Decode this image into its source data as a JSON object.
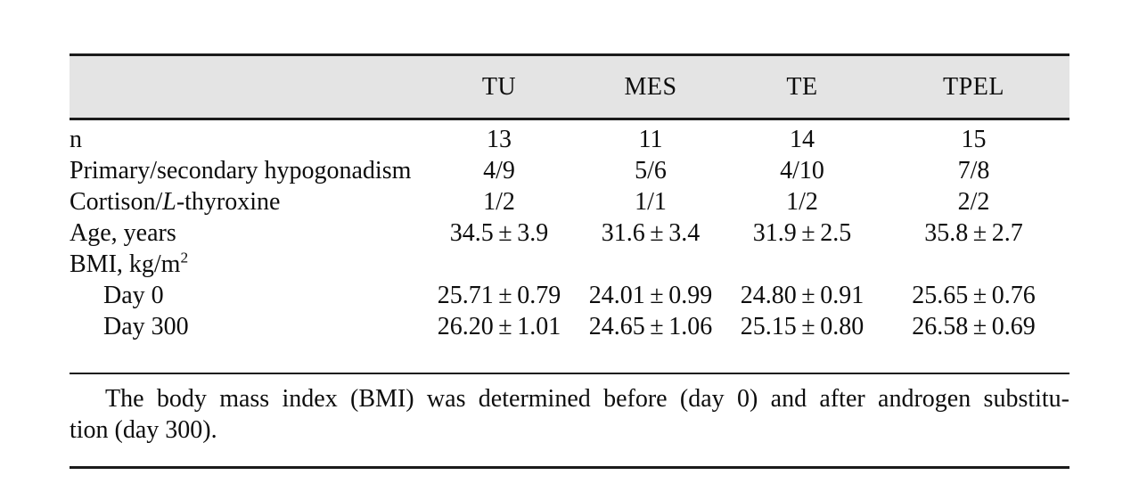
{
  "colors": {
    "header_bg": "#e4e4e4",
    "rule": "#1b1b1b",
    "ink": "#0d0d0d",
    "page_bg": "#ffffff"
  },
  "table": {
    "columns": [
      "TU",
      "MES",
      "TE",
      "TPEL"
    ],
    "rows": [
      {
        "label": "n",
        "values": [
          "13",
          "11",
          "14",
          "15"
        ]
      },
      {
        "label": "Primary/secondary hypogonadism",
        "values": [
          "4/9",
          "5/6",
          "4/10",
          "7/8"
        ]
      },
      {
        "label_prefix": "Cortison/",
        "label_italic": "L",
        "label_suffix": "-thyroxine",
        "values": [
          "1/2",
          "1/1",
          "1/2",
          "2/2"
        ]
      },
      {
        "label": "Age, years",
        "values": [
          "34.5 ± 3.9",
          "31.6 ± 3.4",
          "31.9 ± 2.5",
          "35.8 ± 2.7"
        ]
      },
      {
        "label_prefix": "BMI, kg/m",
        "label_sup": "2",
        "values": [
          "",
          "",
          "",
          ""
        ]
      },
      {
        "label": "Day 0",
        "indented": true,
        "values": [
          "25.71 ± 0.79",
          "24.01 ± 0.99",
          "24.80 ± 0.91",
          "25.65 ± 0.76"
        ]
      },
      {
        "label": "Day 300",
        "indented": true,
        "values": [
          "26.20 ± 1.01",
          "24.65 ± 1.06",
          "25.15 ± 0.80",
          "26.58 ± 0.69"
        ]
      }
    ],
    "footnote": {
      "line1": "The body mass index (BMI) was determined before (day 0) and after androgen substitu-",
      "line2": "tion (day 300)."
    }
  }
}
